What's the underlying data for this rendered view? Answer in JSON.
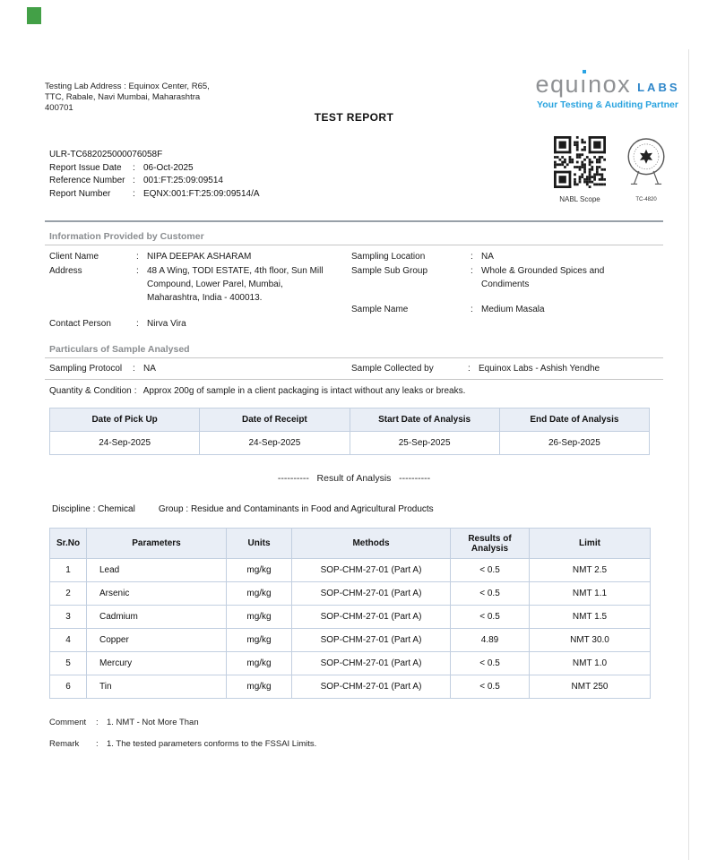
{
  "header": {
    "lab_address_lines": [
      "Testing Lab Address : Equinox Center, R65,",
      "TTC, Rabale, Navi Mumbai, Maharashtra",
      "400701"
    ],
    "title": "TEST REPORT"
  },
  "logo": {
    "brand_prefix": "equ",
    "brand_i": "ı",
    "brand_suffix": "nox",
    "labs": "LABS",
    "tagline": "Your Testing & Auditing Partner",
    "gray": "#8f9194",
    "blue": "#2aa4e4"
  },
  "report_meta": {
    "ulr": "ULR-TC682025000076058F",
    "rows": [
      {
        "label": "Report Issue Date",
        "value": "06-Oct-2025"
      },
      {
        "label": "Reference Number",
        "value": "001:FT:25:09:09514"
      },
      {
        "label": "Report Number",
        "value": "EQNX:001:FT:25:09:09514/A"
      }
    ],
    "qr_caption": "NABL Scope",
    "seal_caption": "TC-4820"
  },
  "customer_info": {
    "heading": "Information Provided by Customer",
    "left": [
      {
        "label": "Client Name",
        "value": "NIPA DEEPAK ASHARAM"
      },
      {
        "label": "Address",
        "value": "48 A Wing, TODI ESTATE, 4th floor, Sun Mill Compound, Lower Parel, Mumbai, Maharashtra, India - 400013."
      },
      {
        "label": "Contact Person",
        "value": "Nirva Vira"
      }
    ],
    "right": [
      {
        "label": "Sampling Location",
        "value": "NA"
      },
      {
        "label": "Sample Sub Group",
        "value": "Whole & Grounded Spices and Condiments"
      },
      {
        "label": "Sample Name",
        "value": "Medium Masala"
      }
    ]
  },
  "particulars": {
    "heading": "Particulars of Sample Analysed",
    "protocol_label": "Sampling Protocol",
    "protocol_value": "NA",
    "collected_label": "Sample Collected by",
    "collected_value": "Equinox Labs - Ashish Yendhe",
    "quantity_label": "Quantity & Condition",
    "quantity_value": "Approx 200g of sample in a client packaging is intact without any leaks or breaks."
  },
  "date_table": {
    "headers": [
      "Date of Pick Up",
      "Date of Receipt",
      "Start Date of Analysis",
      "End Date of Analysis"
    ],
    "values": [
      "24-Sep-2025",
      "24-Sep-2025",
      "25-Sep-2025",
      "26-Sep-2025"
    ]
  },
  "result_section": {
    "divider": "----------   Result of Analysis   ----------",
    "discipline": "Discipline : Chemical",
    "group": "Group : Residue and Contaminants in Food and Agricultural Products"
  },
  "results_table": {
    "headers": [
      "Sr.No",
      "Parameters",
      "Units",
      "Methods",
      "Results of Analysis",
      "Limit"
    ],
    "rows": [
      [
        "1",
        "Lead",
        "mg/kg",
        "SOP-CHM-27-01 (Part A)",
        "< 0.5",
        "NMT 2.5"
      ],
      [
        "2",
        "Arsenic",
        "mg/kg",
        "SOP-CHM-27-01 (Part A)",
        "< 0.5",
        "NMT 1.1"
      ],
      [
        "3",
        "Cadmium",
        "mg/kg",
        "SOP-CHM-27-01 (Part A)",
        "< 0.5",
        "NMT 1.5"
      ],
      [
        "4",
        "Copper",
        "mg/kg",
        "SOP-CHM-27-01 (Part A)",
        "4.89",
        "NMT 30.0"
      ],
      [
        "5",
        "Mercury",
        "mg/kg",
        "SOP-CHM-27-01 (Part A)",
        "< 0.5",
        "NMT 1.0"
      ],
      [
        "6",
        "Tin",
        "mg/kg",
        "SOP-CHM-27-01 (Part A)",
        "< 0.5",
        "NMT 250"
      ]
    ]
  },
  "footnotes": {
    "comment_label": "Comment",
    "comment_value": "1. NMT - Not More Than",
    "remark_label": "Remark",
    "remark_value": "1. The tested parameters conforms to the FSSAI Limits."
  },
  "colors": {
    "corner_mark_green": "#43a047",
    "table_header_bg": "#e9eef6",
    "table_border": "#c2cfe0",
    "heading_gray": "#8a8d90"
  }
}
